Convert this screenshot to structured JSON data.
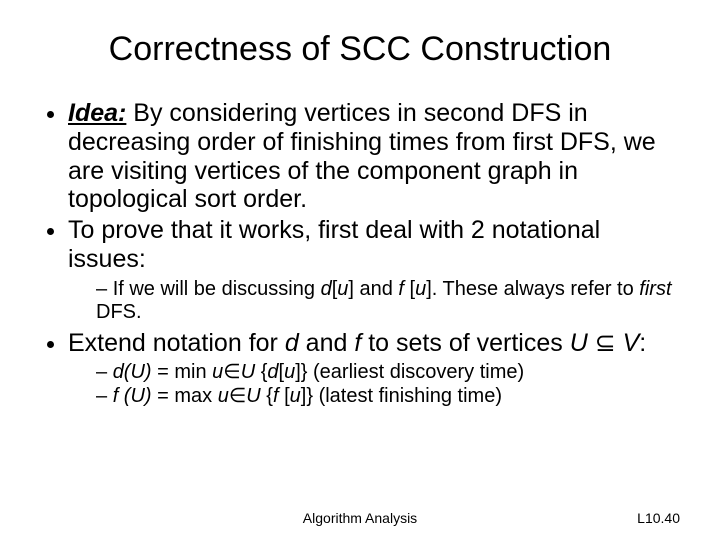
{
  "title": "Correctness of SCC Construction",
  "bullets": {
    "b1_idea_label": "Idea:",
    "b1_rest": " By considering vertices in second DFS in decreasing order of finishing times from first DFS, we are visiting vertices of the component graph in topological sort order.",
    "b2": "To prove that it works, first deal with 2 notational issues:",
    "b2_sub1_a": "If we will be discussing ",
    "b2_sub1_d": "d",
    "b2_sub1_b": "[",
    "b2_sub1_u1": "u",
    "b2_sub1_c": "] and ",
    "b2_sub1_f": "f",
    "b2_sub1_sp": " [",
    "b2_sub1_u2": "u",
    "b2_sub1_e": "]. These always refer to ",
    "b2_sub1_first": "first",
    "b2_sub1_end": " DFS.",
    "b3_a": "Extend notation for ",
    "b3_d": "d",
    "b3_b": " and ",
    "b3_f": "f",
    "b3_c": " to sets of vertices ",
    "b3_U": "U",
    "b3_sub": " ⊆ ",
    "b3_V": "V",
    "b3_colon": ":",
    "b3_sub1_a": "d(U)",
    "b3_sub1_b": " = min ",
    "b3_sub1_u": "u",
    "b3_sub1_in": "∈",
    "b3_sub1_U": "U",
    "b3_sub1_c": " {",
    "b3_sub1_d": "d",
    "b3_sub1_e": "[",
    "b3_sub1_u2": "u",
    "b3_sub1_f": "]} (earliest discovery time)",
    "b3_sub2_a": "f (U)",
    "b3_sub2_b": " = max ",
    "b3_sub2_u": "u",
    "b3_sub2_in": "∈",
    "b3_sub2_U": "U",
    "b3_sub2_c": " {",
    "b3_sub2_f": "f",
    "b3_sub2_d": " [",
    "b3_sub2_u2": "u",
    "b3_sub2_e": "]} (latest finishing time)"
  },
  "footer": {
    "center": "Algorithm Analysis",
    "right": "L10.40"
  },
  "style": {
    "background": "#ffffff",
    "text_color": "#000000",
    "title_fontsize": 34,
    "body_fontsize": 25,
    "sub_fontsize": 20,
    "footer_fontsize": 14,
    "font_family": "Arial"
  }
}
